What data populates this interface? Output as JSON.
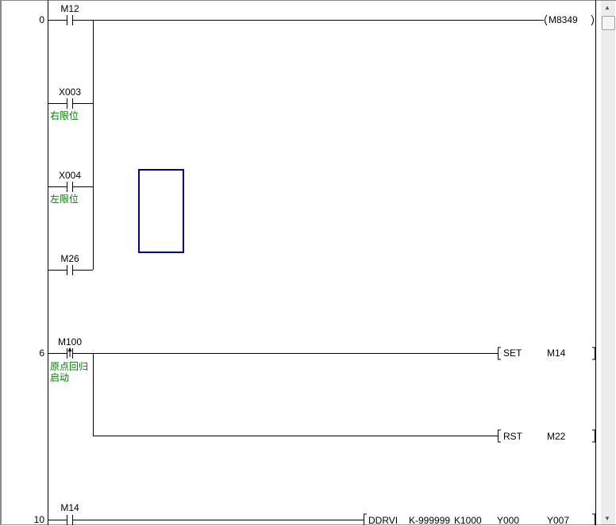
{
  "rungs": [
    {
      "step": "0",
      "contacts": [
        {
          "device": "M12",
          "comment": ""
        },
        {
          "device": "X003",
          "comment": "右限位"
        },
        {
          "device": "X004",
          "comment": "左限位"
        },
        {
          "device": "M26",
          "comment": ""
        }
      ],
      "output": {
        "type": "coil",
        "device": "M8349"
      }
    },
    {
      "step": "6",
      "contacts": [
        {
          "device": "M100",
          "comment_line1": "原点回归",
          "comment_line2": "启动",
          "edge": "rising"
        }
      ],
      "outputs": [
        {
          "instruction": "SET",
          "device": "M14"
        },
        {
          "instruction": "RST",
          "device": "M22"
        }
      ]
    },
    {
      "step": "10",
      "contacts": [
        {
          "device": "M14"
        }
      ],
      "output": {
        "instruction": "DDRVI",
        "operands": [
          "K-999999",
          "K1000",
          "Y000",
          "Y007"
        ]
      }
    }
  ],
  "colors": {
    "comment": "#008000",
    "cursor": "#00009a",
    "line": "#000000"
  }
}
